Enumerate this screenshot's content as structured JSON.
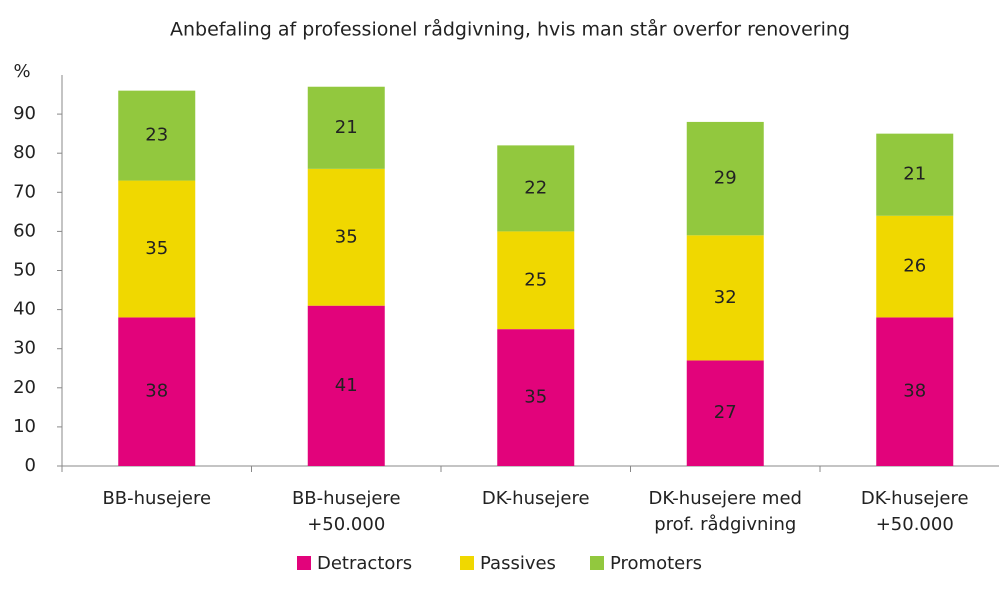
{
  "chart_data": {
    "type": "stacked_bar",
    "title": "Anbefaling af professionel rådgivning, hvis man står overfor renovering",
    "y_label": "%",
    "categories": [
      "BB-husejere",
      "BB-husejere\n+50.000",
      "DK-husejere",
      "DK-husejere med\nprof. rådgivning",
      "DK-husejere\n+50.000"
    ],
    "series": [
      {
        "name": "Detractors",
        "color": "#e2037b",
        "values": [
          38,
          41,
          35,
          27,
          38
        ]
      },
      {
        "name": "Passives",
        "color": "#f0d800",
        "values": [
          35,
          35,
          25,
          32,
          26
        ]
      },
      {
        "name": "Promoters",
        "color": "#92c83e",
        "values": [
          23,
          21,
          22,
          29,
          21
        ]
      }
    ],
    "ylim": [
      0,
      100
    ],
    "yticks": [
      0,
      10,
      20,
      30,
      40,
      50,
      60,
      70,
      80,
      90
    ],
    "legend": "bottom"
  }
}
